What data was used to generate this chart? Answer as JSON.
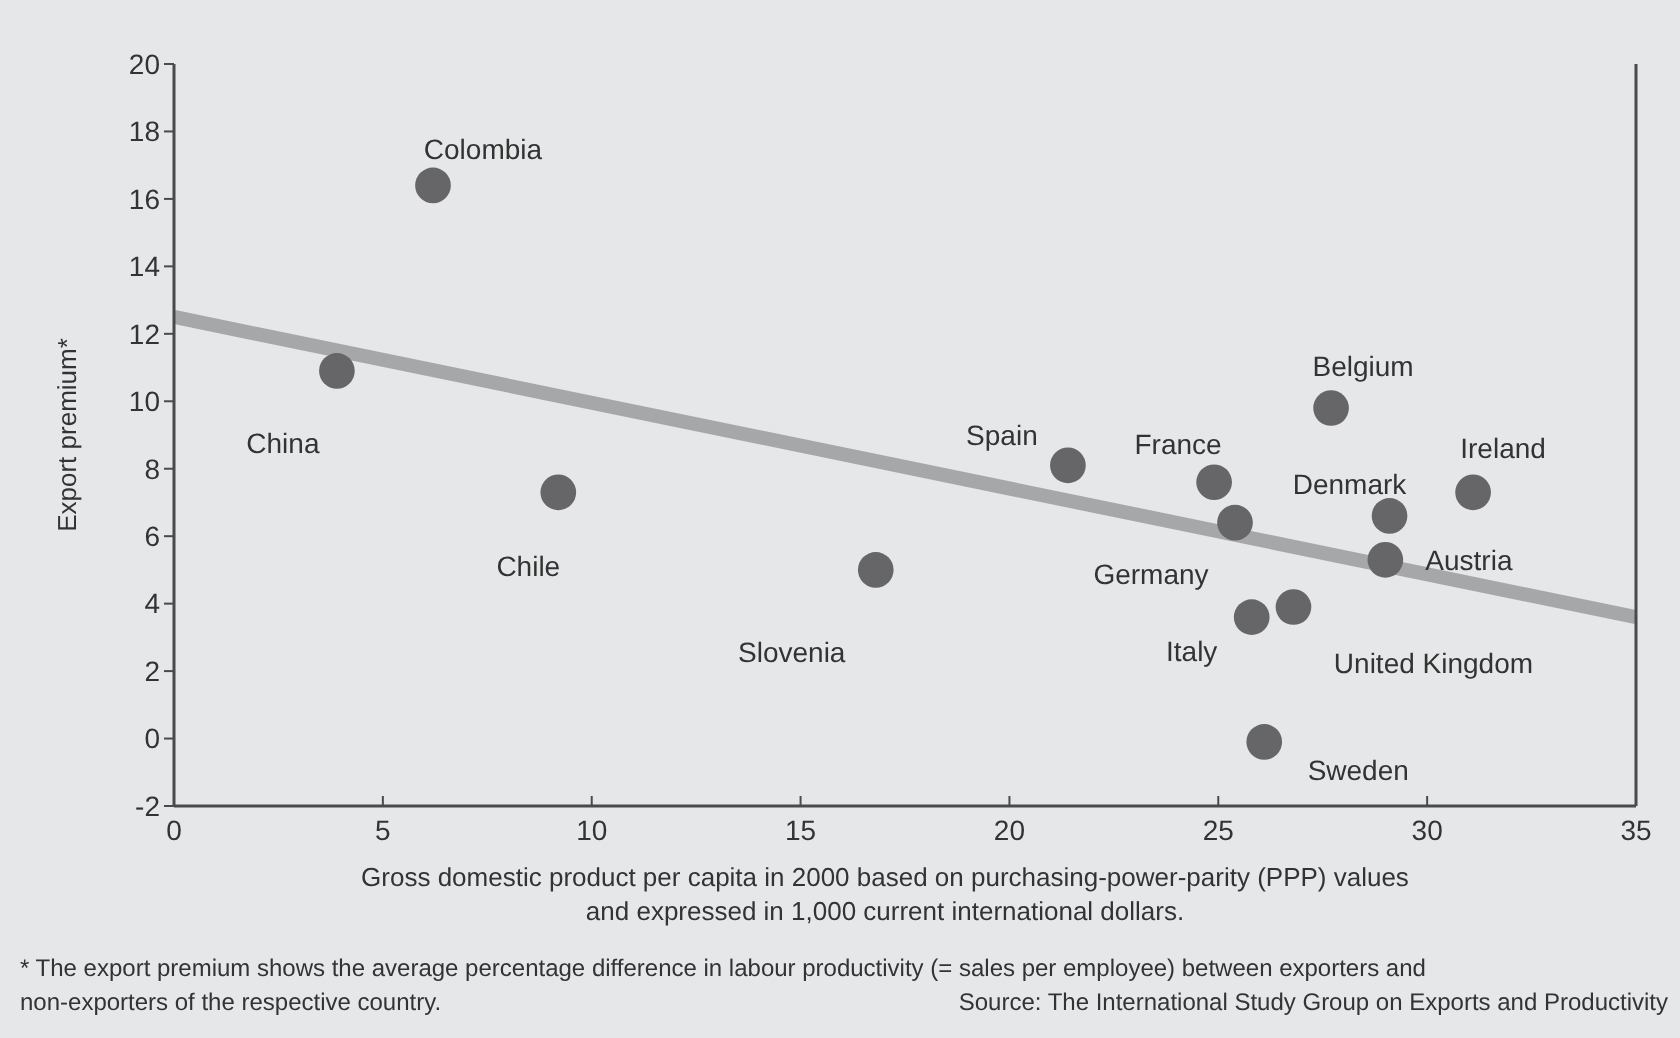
{
  "chart_data": {
    "type": "scatter",
    "xlabel": "Gross domestic product per capita in 2000 based on purchasing-power-parity (PPP) values and expressed in 1,000 current international dollars.",
    "ylabel": "Export premium*",
    "xlim": [
      0,
      35
    ],
    "xticks": [
      0,
      5,
      10,
      15,
      20,
      25,
      30,
      35
    ],
    "ylim": [
      -2,
      20
    ],
    "yticks": [
      -2,
      0,
      2,
      4,
      6,
      8,
      10,
      12,
      14,
      16,
      18,
      20
    ],
    "grid": false,
    "series": [
      {
        "type": "scatter",
        "marker": "circle",
        "color": "#666668",
        "x": [
          6.2,
          3.9,
          9.2,
          16.8,
          21.4,
          24.9,
          25.4,
          25.8,
          26.8,
          26.1,
          27.7,
          29.1,
          29.0,
          31.1
        ],
        "values": [
          16.4,
          10.9,
          7.3,
          5.0,
          8.1,
          7.6,
          6.4,
          3.6,
          3.9,
          -0.1,
          9.8,
          6.6,
          5.3,
          7.3
        ]
      },
      {
        "type": "line",
        "color": "#a6a7a9",
        "x": [
          0,
          35
        ],
        "values": [
          12.5,
          3.6
        ]
      }
    ],
    "annotations": [
      {
        "text": "Colombia",
        "x": 6.2,
        "y": 16.4
      },
      {
        "text": "China",
        "x": 3.9,
        "y": 10.9
      },
      {
        "text": "Chile",
        "x": 9.2,
        "y": 7.3
      },
      {
        "text": "Slovenia",
        "x": 16.8,
        "y": 5.0
      },
      {
        "text": "Spain",
        "x": 21.4,
        "y": 8.1
      },
      {
        "text": "France",
        "x": 24.9,
        "y": 7.6
      },
      {
        "text": "Germany",
        "x": 25.4,
        "y": 6.4
      },
      {
        "text": "Italy",
        "x": 25.8,
        "y": 3.6
      },
      {
        "text": "United Kingdom",
        "x": 26.8,
        "y": 3.9
      },
      {
        "text": "Sweden",
        "x": 26.1,
        "y": -0.1
      },
      {
        "text": "Belgium",
        "x": 27.7,
        "y": 9.8
      },
      {
        "text": "Denmark",
        "x": 29.1,
        "y": 6.6
      },
      {
        "text": "Austria",
        "x": 29.0,
        "y": 5.3
      },
      {
        "text": "Ireland",
        "x": 31.1,
        "y": 7.3
      },
      "* The export premium shows the average percentage difference in labour productivity (= sales per employee) between exporters and non-exporters of the respective country.",
      "Source: The International Study Group on Exports and Productivity"
    ]
  }
}
